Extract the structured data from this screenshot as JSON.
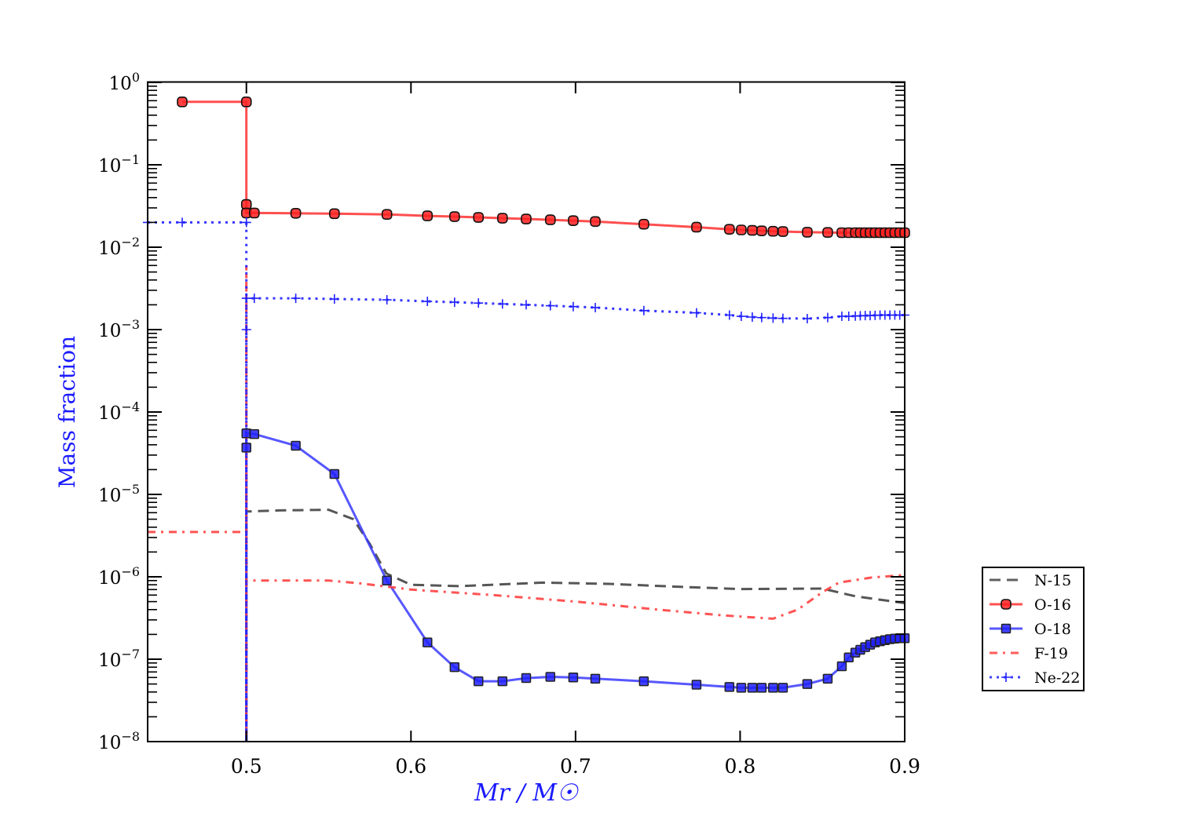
{
  "chart_data": {
    "type": "line",
    "title": "",
    "xlabel": "Mr / M☉",
    "ylabel": "Mass fraction",
    "xlim": [
      0.44,
      0.9
    ],
    "ylim": [
      1e-08,
      1
    ],
    "yscale": "log",
    "xticks": [
      "0.5",
      "0.6",
      "0.7",
      "0.8",
      "0.9"
    ],
    "yticks": [
      {
        "base": "10",
        "exp": "0"
      },
      {
        "base": "10",
        "exp": "−1"
      },
      {
        "base": "10",
        "exp": "−2"
      },
      {
        "base": "10",
        "exp": "−3"
      },
      {
        "base": "10",
        "exp": "−4"
      },
      {
        "base": "10",
        "exp": "−5"
      },
      {
        "base": "10",
        "exp": "−6"
      },
      {
        "base": "10",
        "exp": "−7"
      },
      {
        "base": "10",
        "exp": "−8"
      }
    ],
    "legend_position": "outside-right",
    "series": [
      {
        "name": "N-15",
        "color": "#444444",
        "style": "dashed",
        "marker": "none",
        "x": [
          0.5,
          0.5,
          0.52,
          0.55,
          0.565,
          0.575,
          0.585,
          0.6,
          0.63,
          0.68,
          0.72,
          0.76,
          0.8,
          0.85,
          0.87,
          0.9
        ],
        "y": [
          1e-08,
          6.2e-06,
          6.4e-06,
          6.5e-06,
          5e-06,
          2.5e-06,
          1.1e-06,
          8e-07,
          7.7e-07,
          8.5e-07,
          8.2e-07,
          7.6e-07,
          7.1e-07,
          7.2e-07,
          5.8e-07,
          4.8e-07
        ]
      },
      {
        "name": "O-16",
        "color": "#ff3030",
        "style": "solid",
        "marker": "circle",
        "x": [
          0.461,
          0.5,
          0.5,
          0.5,
          0.5048,
          0.53,
          0.5535,
          0.5854,
          0.61,
          0.6265,
          0.641,
          0.6556,
          0.67,
          0.6847,
          0.6986,
          0.712,
          0.7415,
          0.7735,
          0.7935,
          0.8007,
          0.8074,
          0.8131,
          0.82,
          0.826,
          0.8408,
          0.8532,
          0.8618,
          0.866,
          0.87,
          0.873,
          0.876,
          0.879,
          0.882,
          0.885,
          0.888,
          0.891,
          0.894,
          0.897,
          0.9
        ],
        "y": [
          0.58,
          0.58,
          0.033,
          0.026,
          0.026,
          0.0258,
          0.0255,
          0.025,
          0.024,
          0.0235,
          0.023,
          0.0225,
          0.022,
          0.0215,
          0.021,
          0.0205,
          0.019,
          0.0175,
          0.0165,
          0.0162,
          0.016,
          0.0158,
          0.0156,
          0.0155,
          0.0152,
          0.0151,
          0.015,
          0.015,
          0.015,
          0.015,
          0.015,
          0.015,
          0.015,
          0.015,
          0.015,
          0.015,
          0.015,
          0.015,
          0.015
        ]
      },
      {
        "name": "O-18",
        "color": "#3a3aff",
        "style": "solid",
        "marker": "square",
        "x": [
          0.5,
          0.5,
          0.5,
          0.5048,
          0.53,
          0.5535,
          0.5854,
          0.61,
          0.6265,
          0.641,
          0.6556,
          0.67,
          0.6847,
          0.6986,
          0.712,
          0.7415,
          0.7735,
          0.7935,
          0.8007,
          0.8074,
          0.8131,
          0.82,
          0.826,
          0.8408,
          0.8532,
          0.8618,
          0.866,
          0.87,
          0.873,
          0.876,
          0.879,
          0.882,
          0.885,
          0.888,
          0.891,
          0.894,
          0.897,
          0.9
        ],
        "y": [
          1e-08,
          3.7e-05,
          5.5e-05,
          5.4e-05,
          3.9e-05,
          1.77e-05,
          9e-07,
          1.6e-07,
          8e-08,
          5.4e-08,
          5.4e-08,
          5.9e-08,
          6.1e-08,
          6e-08,
          5.8e-08,
          5.4e-08,
          4.9e-08,
          4.6e-08,
          4.5e-08,
          4.5e-08,
          4.5e-08,
          4.5e-08,
          4.5e-08,
          5e-08,
          5.8e-08,
          8.2e-08,
          1.05e-07,
          1.2e-07,
          1.3e-07,
          1.4e-07,
          1.5e-07,
          1.6e-07,
          1.65e-07,
          1.7e-07,
          1.75e-07,
          1.78e-07,
          1.8e-07,
          1.8e-07
        ]
      },
      {
        "name": "F-19",
        "color": "#ff4040",
        "style": "dashdot",
        "marker": "none",
        "x": [
          0.44,
          0.5,
          0.5,
          0.5,
          0.5,
          0.53,
          0.55,
          0.57,
          0.6,
          0.65,
          0.7,
          0.75,
          0.79,
          0.82,
          0.835,
          0.85,
          0.86,
          0.88,
          0.9
        ],
        "y": [
          3.5e-06,
          3.5e-06,
          0.006,
          1e-08,
          9e-07,
          9e-07,
          9e-07,
          8.3e-07,
          7e-07,
          6e-07,
          5e-07,
          4e-07,
          3.4e-07,
          3.1e-07,
          4e-07,
          6.5e-07,
          8.5e-07,
          9.8e-07,
          1.05e-06
        ]
      },
      {
        "name": "Ne-22",
        "color": "#2020ff",
        "style": "dotted",
        "marker": "plus",
        "x": [
          0.44,
          0.461,
          0.5,
          0.5,
          0.5,
          0.5,
          0.5048,
          0.53,
          0.5535,
          0.5854,
          0.61,
          0.6265,
          0.641,
          0.6556,
          0.67,
          0.6847,
          0.6986,
          0.712,
          0.7415,
          0.7735,
          0.7935,
          0.8007,
          0.8074,
          0.8131,
          0.82,
          0.826,
          0.8408,
          0.8532,
          0.8618,
          0.866,
          0.87,
          0.873,
          0.876,
          0.879,
          0.882,
          0.885,
          0.888,
          0.891,
          0.894,
          0.897,
          0.9
        ],
        "y": [
          0.02,
          0.02,
          0.02,
          1e-08,
          0.001,
          0.0024,
          0.0024,
          0.0024,
          0.00235,
          0.0023,
          0.0022,
          0.00215,
          0.0021,
          0.00205,
          0.002,
          0.00195,
          0.0019,
          0.00185,
          0.0017,
          0.0016,
          0.0015,
          0.00145,
          0.00142,
          0.0014,
          0.00138,
          0.00137,
          0.00136,
          0.0014,
          0.00145,
          0.00145,
          0.00146,
          0.00147,
          0.00148,
          0.00148,
          0.00149,
          0.0015,
          0.0015,
          0.0015,
          0.0015,
          0.0015,
          0.0015
        ]
      }
    ]
  }
}
